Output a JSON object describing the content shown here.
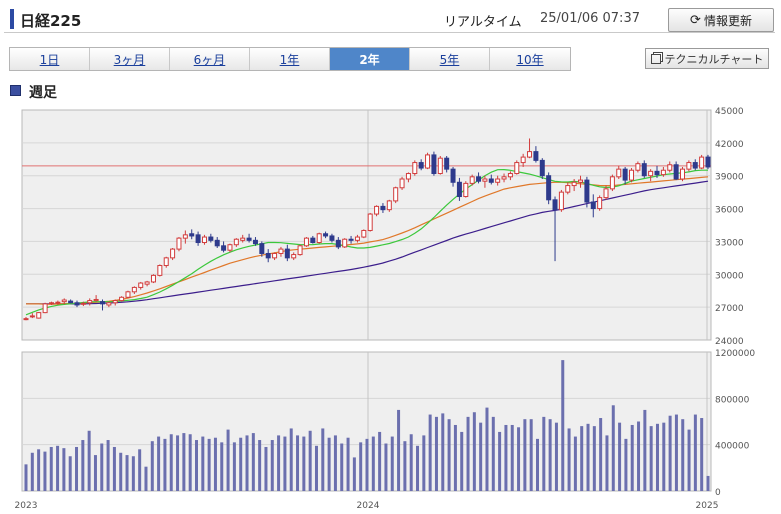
{
  "header": {
    "title": "日経225",
    "realtime_label": "リアルタイム",
    "timestamp": "25/01/06 07:37",
    "refresh_label": "情報更新",
    "refresh_icon": "refresh-icon"
  },
  "tabs": [
    {
      "label": "1日",
      "active": false
    },
    {
      "label": "3ヶ月",
      "active": false
    },
    {
      "label": "6ヶ月",
      "active": false
    },
    {
      "label": "1年",
      "active": false
    },
    {
      "label": "2年",
      "active": true
    },
    {
      "label": "5年",
      "active": false
    },
    {
      "label": "10年",
      "active": false
    }
  ],
  "technical_chart_label": "テクニカルチャート",
  "section_title": "週足",
  "colors": {
    "up": "#d23c3c",
    "down": "#2e3a8c",
    "ma_short": "#3cc83c",
    "ma_mid": "#e0782a",
    "ma_long": "#3c1e8c",
    "volume": "#6b6fae",
    "ref_line": "#e07070",
    "tab_active": "#4f86c9"
  },
  "chart_data": [
    {
      "type": "candlestick",
      "title": "",
      "y_ticks": [
        "45000",
        "42000",
        "39000",
        "36000",
        "33000",
        "30000",
        "27000",
        "24000"
      ],
      "ylim": [
        24000,
        45000
      ],
      "reference_line": 39900,
      "x_tick_labels": [
        "2023",
        "2024",
        "2025"
      ],
      "grid": true,
      "candles": [
        [
          25900,
          26100,
          25800,
          25950
        ],
        [
          26150,
          26450,
          26000,
          26200
        ],
        [
          26000,
          26550,
          25950,
          26500
        ],
        [
          26500,
          27400,
          26450,
          27300
        ],
        [
          27350,
          27500,
          27200,
          27400
        ],
        [
          27400,
          27600,
          27200,
          27450
        ],
        [
          27500,
          27800,
          27250,
          27650
        ],
        [
          27550,
          27700,
          27350,
          27400
        ],
        [
          27400,
          27600,
          27000,
          27200
        ],
        [
          27300,
          27500,
          27100,
          27350
        ],
        [
          27400,
          27800,
          27150,
          27600
        ],
        [
          27600,
          28100,
          27500,
          27700
        ],
        [
          27500,
          27700,
          26700,
          27300
        ],
        [
          27200,
          27500,
          27000,
          27400
        ],
        [
          27400,
          27700,
          27150,
          27600
        ],
        [
          27600,
          28000,
          27500,
          27900
        ],
        [
          27900,
          28500,
          27800,
          28400
        ],
        [
          28400,
          28900,
          28200,
          28800
        ],
        [
          28800,
          29300,
          28600,
          29200
        ],
        [
          29100,
          29400,
          28900,
          29300
        ],
        [
          29300,
          30000,
          29200,
          29900
        ],
        [
          29900,
          30900,
          29800,
          30800
        ],
        [
          30800,
          31600,
          30600,
          31500
        ],
        [
          31500,
          32400,
          31300,
          32300
        ],
        [
          32300,
          33400,
          32100,
          33300
        ],
        [
          33300,
          34000,
          32800,
          33600
        ],
        [
          33700,
          34100,
          33200,
          33500
        ],
        [
          33600,
          33900,
          32600,
          32900
        ],
        [
          32900,
          33600,
          32700,
          33400
        ],
        [
          33400,
          33700,
          32900,
          33100
        ],
        [
          33100,
          33400,
          32400,
          32600
        ],
        [
          32600,
          33000,
          32000,
          32200
        ],
        [
          32200,
          32800,
          32000,
          32700
        ],
        [
          32700,
          33300,
          32500,
          33200
        ],
        [
          33100,
          33600,
          32900,
          33300
        ],
        [
          33300,
          33700,
          32900,
          33100
        ],
        [
          33100,
          33400,
          32600,
          32800
        ],
        [
          32800,
          33000,
          31600,
          31900
        ],
        [
          31900,
          32300,
          31100,
          31500
        ],
        [
          31500,
          32000,
          31300,
          31900
        ],
        [
          31900,
          32500,
          31600,
          32300
        ],
        [
          32300,
          32700,
          31200,
          31500
        ],
        [
          31500,
          32000,
          31300,
          31800
        ],
        [
          31800,
          32700,
          31700,
          32600
        ],
        [
          32600,
          33400,
          32500,
          33300
        ],
        [
          33300,
          33500,
          32800,
          32900
        ],
        [
          32900,
          33800,
          32800,
          33700
        ],
        [
          33700,
          33900,
          33300,
          33500
        ],
        [
          33500,
          33700,
          32900,
          33100
        ],
        [
          33100,
          33400,
          32300,
          32500
        ],
        [
          32500,
          33300,
          32400,
          33200
        ],
        [
          33200,
          33500,
          32800,
          33100
        ],
        [
          33100,
          33600,
          32900,
          33400
        ],
        [
          33400,
          34100,
          33300,
          34000
        ],
        [
          34000,
          35600,
          33900,
          35500
        ],
        [
          35500,
          36300,
          35300,
          36200
        ],
        [
          36200,
          36500,
          35600,
          35900
        ],
        [
          35900,
          36800,
          35700,
          36700
        ],
        [
          36700,
          38000,
          36500,
          37900
        ],
        [
          37900,
          38900,
          37700,
          38700
        ],
        [
          38700,
          39300,
          38400,
          39200
        ],
        [
          39200,
          40400,
          39000,
          40200
        ],
        [
          40200,
          40500,
          39500,
          39700
        ],
        [
          39700,
          41100,
          39600,
          40900
        ],
        [
          40900,
          41200,
          39000,
          39200
        ],
        [
          39200,
          40800,
          39100,
          40600
        ],
        [
          40600,
          40800,
          39300,
          39600
        ],
        [
          39600,
          39800,
          38000,
          38400
        ],
        [
          38400,
          38800,
          36700,
          37100
        ],
        [
          37100,
          38500,
          37000,
          38300
        ],
        [
          38300,
          39100,
          38100,
          38900
        ],
        [
          38900,
          39300,
          38300,
          38500
        ],
        [
          38500,
          39000,
          37900,
          38700
        ],
        [
          38700,
          39100,
          38200,
          38400
        ],
        [
          38400,
          39000,
          38100,
          38700
        ],
        [
          38700,
          39200,
          38400,
          38900
        ],
        [
          38900,
          39400,
          38600,
          39200
        ],
        [
          39200,
          40400,
          39100,
          40200
        ],
        [
          40200,
          41000,
          39800,
          40700
        ],
        [
          40700,
          42400,
          40600,
          41200
        ],
        [
          41200,
          41700,
          40200,
          40400
        ],
        [
          40400,
          40600,
          38700,
          39000
        ],
        [
          39000,
          39300,
          36400,
          36800
        ],
        [
          36800,
          37100,
          31200,
          35900
        ],
        [
          35900,
          37700,
          35700,
          37500
        ],
        [
          37500,
          38400,
          37300,
          38100
        ],
        [
          38100,
          38700,
          37600,
          38400
        ],
        [
          38400,
          39000,
          37900,
          38600
        ],
        [
          38600,
          38900,
          36100,
          36600
        ],
        [
          36600,
          37300,
          35200,
          36000
        ],
        [
          36000,
          37200,
          35800,
          37000
        ],
        [
          37000,
          38100,
          36800,
          37800
        ],
        [
          37800,
          39100,
          37600,
          38900
        ],
        [
          38900,
          39900,
          38700,
          39600
        ],
        [
          39600,
          39800,
          38200,
          38600
        ],
        [
          38600,
          39700,
          38400,
          39500
        ],
        [
          39500,
          40300,
          39300,
          40100
        ],
        [
          40100,
          40400,
          38800,
          39000
        ],
        [
          39000,
          39600,
          38500,
          39400
        ],
        [
          39400,
          39900,
          38800,
          39100
        ],
        [
          39100,
          39800,
          38900,
          39500
        ],
        [
          39500,
          40300,
          39300,
          40000
        ],
        [
          40000,
          40300,
          38600,
          38700
        ],
        [
          38700,
          39800,
          38500,
          39600
        ],
        [
          39600,
          40400,
          39400,
          40200
        ],
        [
          40200,
          40500,
          39500,
          39700
        ],
        [
          39700,
          40900,
          39600,
          40700
        ],
        [
          40700,
          40900,
          39600,
          39800
        ]
      ],
      "ma_short": [
        26300,
        26700,
        27000,
        27200,
        27300,
        27400,
        27500,
        27500,
        27500,
        27600,
        27700,
        27900,
        28300,
        28800,
        29400,
        30000,
        30700,
        31300,
        31800,
        32200,
        32500,
        32700,
        32900,
        32900,
        32800,
        32700,
        32700,
        32800,
        32800,
        32600,
        32400,
        32400,
        32600,
        32800,
        33100,
        33500,
        34200,
        35100,
        36100,
        37000,
        37800,
        38500,
        39200,
        39600,
        39500,
        39300,
        39100,
        38800,
        38500,
        38400,
        38500,
        38300,
        38000,
        37900,
        38100,
        38500,
        38700,
        38900,
        39100,
        39200,
        39300,
        39500,
        39500
      ],
      "ma_mid": [
        27300,
        27300,
        27250,
        27300,
        27350,
        27400,
        27450,
        27550,
        27700,
        27950,
        28250,
        28600,
        29000,
        29400,
        29800,
        30200,
        30600,
        31000,
        31300,
        31600,
        31800,
        32000,
        32200,
        32300,
        32400,
        32500,
        32600,
        32700,
        32800,
        33000,
        33200,
        33600,
        34000,
        34500,
        35000,
        35500,
        36000,
        36500,
        37000,
        37400,
        37800,
        38000,
        38200,
        38300,
        38400,
        38400,
        38300,
        38200,
        38100,
        38100,
        38200,
        38300,
        38400,
        38500,
        38600,
        38700,
        38800,
        38900
      ],
      "ma_long": [
        27300,
        27300,
        27300,
        27300,
        27300,
        27350,
        27400,
        27500,
        27650,
        27850,
        28050,
        28250,
        28450,
        28650,
        28850,
        29050,
        29250,
        29450,
        29650,
        29850,
        30050,
        30250,
        30450,
        30700,
        31000,
        31400,
        31900,
        32400,
        32900,
        33400,
        33800,
        34200,
        34600,
        35000,
        35400,
        35700,
        35900,
        36200,
        36500,
        36800,
        37100,
        37400,
        37700,
        37900,
        38100,
        38300,
        38500
      ],
      "volume_ticks": [
        "1200000",
        "800000",
        "400000",
        "0"
      ],
      "volume_ylim": [
        0,
        1200000
      ],
      "volume": [
        230000,
        330000,
        360000,
        340000,
        380000,
        390000,
        370000,
        300000,
        380000,
        440000,
        520000,
        310000,
        410000,
        440000,
        380000,
        330000,
        310000,
        300000,
        360000,
        210000,
        430000,
        470000,
        450000,
        490000,
        480000,
        500000,
        490000,
        440000,
        470000,
        450000,
        460000,
        420000,
        530000,
        420000,
        460000,
        480000,
        500000,
        440000,
        380000,
        440000,
        480000,
        470000,
        540000,
        480000,
        470000,
        520000,
        390000,
        540000,
        460000,
        480000,
        410000,
        460000,
        290000,
        420000,
        450000,
        470000,
        510000,
        410000,
        470000,
        700000,
        430000,
        490000,
        390000,
        480000,
        660000,
        640000,
        670000,
        620000,
        570000,
        510000,
        640000,
        680000,
        590000,
        720000,
        640000,
        510000,
        570000,
        570000,
        550000,
        620000,
        620000,
        450000,
        640000,
        620000,
        590000,
        1130000,
        540000,
        470000,
        560000,
        580000,
        560000,
        630000,
        480000,
        740000,
        590000,
        450000,
        570000,
        600000,
        700000,
        560000,
        580000,
        590000,
        650000,
        660000,
        620000,
        530000,
        660000,
        630000,
        130000
      ]
    }
  ]
}
